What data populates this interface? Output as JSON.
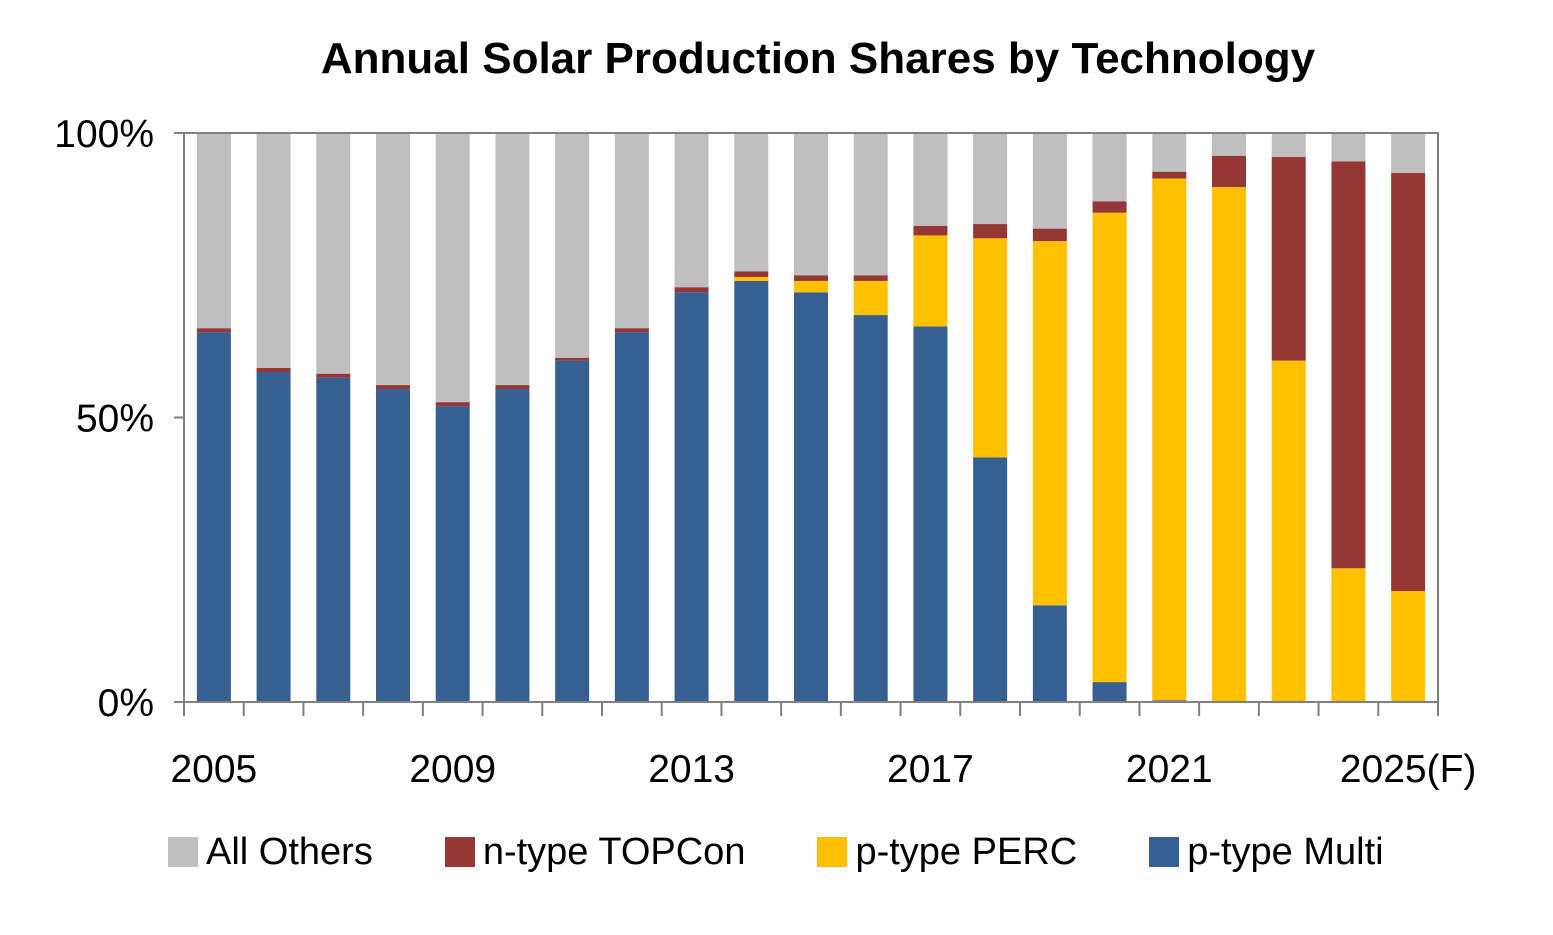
{
  "chart_data": {
    "type": "bar",
    "stacked": true,
    "title": "Annual Solar Production Shares by Technology",
    "xlabel": "",
    "ylabel": "",
    "ylim": [
      0,
      100
    ],
    "y_ticks": [
      "0%",
      "50%",
      "100%"
    ],
    "x_tick_labels": [
      "2005",
      "2009",
      "2013",
      "2017",
      "2021",
      "2025(F)"
    ],
    "categories": [
      "2005",
      "2006",
      "2007",
      "2008",
      "2009",
      "2010",
      "2011",
      "2012",
      "2013",
      "2014",
      "2015",
      "2016",
      "2017",
      "2018",
      "2019",
      "2020",
      "2021",
      "2022",
      "2023",
      "2024",
      "2025(F)"
    ],
    "series": [
      {
        "name": "p-type Multi",
        "color": "#376092",
        "values": [
          65,
          58,
          57,
          55,
          52,
          55,
          60,
          65,
          72,
          74,
          72,
          68,
          66,
          43,
          17,
          3.5,
          0.3,
          0,
          0,
          0,
          0
        ]
      },
      {
        "name": "p-type PERC",
        "color": "#FFC000",
        "values": [
          0,
          0,
          0,
          0,
          0,
          0,
          0,
          0,
          0,
          0.7,
          2,
          6,
          16,
          38.5,
          64,
          82.5,
          91.7,
          90.5,
          60,
          23.5,
          19.5
        ]
      },
      {
        "name": "n-type TOPCon",
        "color": "#953735",
        "values": [
          0.7,
          0.7,
          0.7,
          0.7,
          0.7,
          0.7,
          0.5,
          0.7,
          0.9,
          1,
          1,
          1,
          1.7,
          2.5,
          2.2,
          2,
          1.2,
          5.5,
          35.8,
          71.5,
          73.5
        ]
      },
      {
        "name": "All Others",
        "color": "#BFBFBF",
        "values": [
          34.3,
          41.3,
          42.3,
          44.3,
          47.3,
          44.3,
          39.5,
          34.3,
          27.1,
          24.3,
          25,
          25,
          16.3,
          16,
          16.8,
          12,
          6.8,
          4,
          4.2,
          5,
          7
        ]
      }
    ],
    "legend": {
      "position": "bottom",
      "order": [
        "All Others",
        "n-type TOPCon",
        "p-type PERC",
        "p-type Multi"
      ]
    }
  }
}
